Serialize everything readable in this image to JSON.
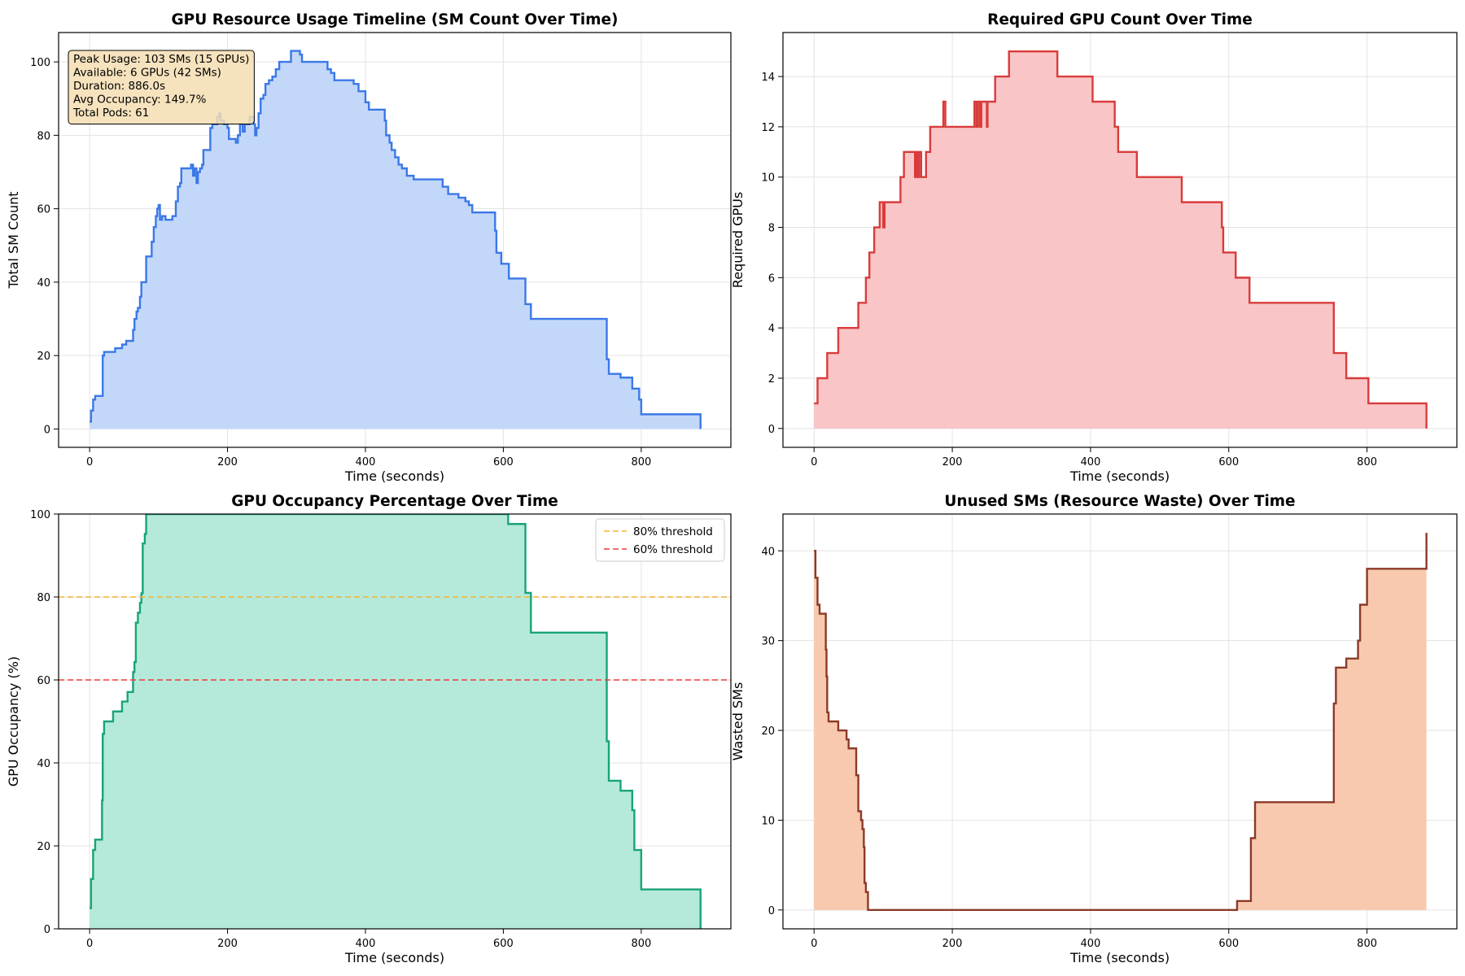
{
  "chart_data": [
    {
      "type": "area",
      "step": true,
      "title": "GPU Resource Usage Timeline (SM Count Over Time)",
      "xlabel": "Time (seconds)",
      "ylabel": "Total SM Count",
      "xlim": [
        -45,
        930
      ],
      "ylim": [
        -5,
        108
      ],
      "xticks": [
        0,
        200,
        400,
        600,
        800
      ],
      "yticks": [
        0,
        20,
        40,
        60,
        80,
        100
      ],
      "grid": true,
      "line_color": "#3b78e7",
      "fill_color": "#c3d8f9",
      "annotation": {
        "lines": [
          "Peak Usage: 103 SMs (15 GPUs)",
          "Available: 6 GPUs (42 SMs)",
          "Duration: 886.0s",
          "Avg Occupancy: 149.7%",
          "Total Pods: 61"
        ],
        "position": "top-left",
        "background": "#f5deb3"
      },
      "points": [
        [
          0,
          2
        ],
        [
          2,
          5
        ],
        [
          5,
          8
        ],
        [
          8,
          9
        ],
        [
          18,
          9
        ],
        [
          19,
          20
        ],
        [
          21,
          21
        ],
        [
          35,
          21
        ],
        [
          37,
          22
        ],
        [
          45,
          22
        ],
        [
          47,
          23
        ],
        [
          50,
          23
        ],
        [
          53,
          24
        ],
        [
          60,
          24
        ],
        [
          63,
          27
        ],
        [
          65,
          30
        ],
        [
          68,
          32
        ],
        [
          70,
          33
        ],
        [
          73,
          36
        ],
        [
          75,
          40
        ],
        [
          80,
          40
        ],
        [
          82,
          47
        ],
        [
          88,
          47
        ],
        [
          90,
          51
        ],
        [
          93,
          55
        ],
        [
          96,
          58
        ],
        [
          98,
          60
        ],
        [
          100,
          61
        ],
        [
          102,
          57
        ],
        [
          105,
          58
        ],
        [
          110,
          57
        ],
        [
          120,
          58
        ],
        [
          125,
          62
        ],
        [
          128,
          66
        ],
        [
          131,
          67
        ],
        [
          133,
          71
        ],
        [
          145,
          71
        ],
        [
          147,
          72
        ],
        [
          150,
          69
        ],
        [
          152,
          71
        ],
        [
          155,
          67
        ],
        [
          157,
          70
        ],
        [
          160,
          71
        ],
        [
          163,
          72
        ],
        [
          165,
          76
        ],
        [
          173,
          76
        ],
        [
          175,
          82
        ],
        [
          178,
          83
        ],
        [
          183,
          83
        ],
        [
          185,
          85
        ],
        [
          188,
          86
        ],
        [
          190,
          84
        ],
        [
          195,
          83
        ],
        [
          200,
          82
        ],
        [
          202,
          79
        ],
        [
          210,
          79
        ],
        [
          212,
          78
        ],
        [
          215,
          80
        ],
        [
          218,
          83
        ],
        [
          222,
          81
        ],
        [
          225,
          83
        ],
        [
          232,
          85
        ],
        [
          238,
          83
        ],
        [
          240,
          80
        ],
        [
          242,
          82
        ],
        [
          245,
          86
        ],
        [
          248,
          90
        ],
        [
          252,
          91
        ],
        [
          255,
          94
        ],
        [
          260,
          95
        ],
        [
          265,
          96
        ],
        [
          270,
          98
        ],
        [
          275,
          100
        ],
        [
          280,
          100
        ],
        [
          290,
          100
        ],
        [
          292,
          103
        ],
        [
          302,
          103
        ],
        [
          305,
          102
        ],
        [
          308,
          100
        ],
        [
          340,
          100
        ],
        [
          345,
          98
        ],
        [
          350,
          97
        ],
        [
          355,
          95
        ],
        [
          380,
          95
        ],
        [
          383,
          94
        ],
        [
          390,
          92
        ],
        [
          395,
          92
        ],
        [
          400,
          89
        ],
        [
          405,
          87
        ],
        [
          425,
          87
        ],
        [
          428,
          84
        ],
        [
          430,
          80
        ],
        [
          435,
          78
        ],
        [
          438,
          76
        ],
        [
          443,
          74
        ],
        [
          448,
          72
        ],
        [
          453,
          71
        ],
        [
          460,
          69
        ],
        [
          470,
          68
        ],
        [
          510,
          68
        ],
        [
          512,
          66
        ],
        [
          520,
          64
        ],
        [
          535,
          63
        ],
        [
          545,
          62
        ],
        [
          550,
          61
        ],
        [
          555,
          59
        ],
        [
          585,
          59
        ],
        [
          588,
          54
        ],
        [
          590,
          48
        ],
        [
          597,
          45
        ],
        [
          606,
          45
        ],
        [
          608,
          41
        ],
        [
          630,
          41
        ],
        [
          632,
          34
        ],
        [
          640,
          30
        ],
        [
          748,
          30
        ],
        [
          750,
          19
        ],
        [
          753,
          15
        ],
        [
          768,
          15
        ],
        [
          770,
          14
        ],
        [
          785,
          14
        ],
        [
          787,
          11
        ],
        [
          797,
          8
        ],
        [
          800,
          4
        ],
        [
          886,
          4
        ],
        [
          886,
          0
        ]
      ]
    },
    {
      "type": "area",
      "step": true,
      "title": "Required GPU Count Over Time",
      "xlabel": "Time (seconds)",
      "ylabel": "Required GPUs",
      "xlim": [
        -45,
        930
      ],
      "ylim": [
        -0.75,
        15.75
      ],
      "xticks": [
        0,
        200,
        400,
        600,
        800
      ],
      "yticks": [
        0,
        2,
        4,
        6,
        8,
        10,
        12,
        14
      ],
      "grid": true,
      "line_color": "#d93b3b",
      "fill_color": "#f9c5c6",
      "points": [
        [
          0,
          1
        ],
        [
          5,
          2
        ],
        [
          18,
          2
        ],
        [
          19,
          3
        ],
        [
          33,
          3
        ],
        [
          35,
          4
        ],
        [
          62,
          4
        ],
        [
          64,
          5
        ],
        [
          73,
          5
        ],
        [
          75,
          6
        ],
        [
          80,
          7
        ],
        [
          87,
          8
        ],
        [
          95,
          9
        ],
        [
          100,
          8
        ],
        [
          102,
          9
        ],
        [
          123,
          9
        ],
        [
          125,
          10
        ],
        [
          130,
          11
        ],
        [
          145,
          11
        ],
        [
          146,
          10
        ],
        [
          148,
          11
        ],
        [
          150,
          10
        ],
        [
          152,
          11
        ],
        [
          155,
          10
        ],
        [
          160,
          10
        ],
        [
          162,
          11
        ],
        [
          168,
          12
        ],
        [
          185,
          12
        ],
        [
          187,
          13
        ],
        [
          190,
          12
        ],
        [
          230,
          12
        ],
        [
          232,
          13
        ],
        [
          235,
          12
        ],
        [
          237,
          13
        ],
        [
          240,
          12
        ],
        [
          242,
          13
        ],
        [
          248,
          13
        ],
        [
          250,
          12
        ],
        [
          251,
          13
        ],
        [
          262,
          14
        ],
        [
          280,
          14
        ],
        [
          282,
          15
        ],
        [
          350,
          15
        ],
        [
          352,
          14
        ],
        [
          400,
          14
        ],
        [
          403,
          13
        ],
        [
          433,
          13
        ],
        [
          435,
          12
        ],
        [
          440,
          11
        ],
        [
          465,
          11
        ],
        [
          467,
          10
        ],
        [
          530,
          10
        ],
        [
          532,
          9
        ],
        [
          588,
          9
        ],
        [
          590,
          8
        ],
        [
          592,
          7
        ],
        [
          607,
          7
        ],
        [
          610,
          6
        ],
        [
          628,
          6
        ],
        [
          630,
          5
        ],
        [
          750,
          5
        ],
        [
          752,
          3
        ],
        [
          767,
          3
        ],
        [
          770,
          2
        ],
        [
          800,
          2
        ],
        [
          802,
          1
        ],
        [
          886,
          1
        ],
        [
          886,
          0
        ]
      ]
    },
    {
      "type": "area",
      "step": true,
      "title": "GPU Occupancy Percentage Over Time",
      "xlabel": "Time (seconds)",
      "ylabel": "GPU Occupancy (%)",
      "xlim": [
        -45,
        930
      ],
      "ylim": [
        0,
        100
      ],
      "xticks": [
        0,
        200,
        400,
        600,
        800
      ],
      "yticks": [
        0,
        20,
        40,
        60,
        80,
        100
      ],
      "grid": true,
      "line_color": "#19a37a",
      "fill_color": "#b5eada",
      "thresholds": [
        {
          "name": "80% threshold",
          "value": 80,
          "color": "#f5b331"
        },
        {
          "name": "60% threshold",
          "value": 60,
          "color": "#ee3b3b"
        }
      ],
      "legend": "top-right",
      "points": [
        [
          0,
          5
        ],
        [
          2,
          12
        ],
        [
          5,
          19
        ],
        [
          8,
          21.5
        ],
        [
          17,
          21.5
        ],
        [
          18,
          31
        ],
        [
          19,
          47
        ],
        [
          21,
          50
        ],
        [
          32,
          50
        ],
        [
          34,
          52.4
        ],
        [
          45,
          52.4
        ],
        [
          47,
          54.8
        ],
        [
          53,
          54.8
        ],
        [
          55,
          57.1
        ],
        [
          62,
          57.1
        ],
        [
          63,
          61.9
        ],
        [
          65,
          64.3
        ],
        [
          67,
          73.8
        ],
        [
          70,
          76.2
        ],
        [
          73,
          78.6
        ],
        [
          75,
          80.9
        ],
        [
          77,
          92.9
        ],
        [
          80,
          95.2
        ],
        [
          82,
          100
        ],
        [
          605,
          100
        ],
        [
          607,
          97.6
        ],
        [
          630,
          97.6
        ],
        [
          632,
          81
        ],
        [
          640,
          71.4
        ],
        [
          748,
          71.4
        ],
        [
          750,
          45.2
        ],
        [
          753,
          35.7
        ],
        [
          768,
          35.7
        ],
        [
          770,
          33.3
        ],
        [
          785,
          33.3
        ],
        [
          787,
          28.6
        ],
        [
          790,
          19
        ],
        [
          800,
          9.5
        ],
        [
          886,
          9.5
        ],
        [
          886,
          0
        ]
      ]
    },
    {
      "type": "area",
      "step": true,
      "title": "Unused SMs (Resource Waste) Over Time",
      "xlabel": "Time (seconds)",
      "ylabel": "Wasted SMs",
      "xlim": [
        -45,
        930
      ],
      "ylim": [
        -2.1,
        44.1
      ],
      "xticks": [
        0,
        200,
        400,
        600,
        800
      ],
      "yticks": [
        0,
        10,
        20,
        30,
        40
      ],
      "grid": true,
      "line_color": "#8b3a28",
      "fill_color": "#f8c9ae",
      "points": [
        [
          0,
          40
        ],
        [
          2,
          37
        ],
        [
          5,
          34
        ],
        [
          8,
          33
        ],
        [
          16,
          33
        ],
        [
          17,
          29
        ],
        [
          18,
          26
        ],
        [
          19,
          22
        ],
        [
          21,
          21
        ],
        [
          33,
          21
        ],
        [
          35,
          20
        ],
        [
          45,
          20
        ],
        [
          47,
          19
        ],
        [
          50,
          18
        ],
        [
          60,
          18
        ],
        [
          61,
          15
        ],
        [
          64,
          11
        ],
        [
          68,
          10
        ],
        [
          70,
          9
        ],
        [
          72,
          7
        ],
        [
          73,
          3
        ],
        [
          75,
          2
        ],
        [
          78,
          0
        ],
        [
          610,
          0
        ],
        [
          612,
          1
        ],
        [
          630,
          1
        ],
        [
          632,
          8
        ],
        [
          638,
          12
        ],
        [
          750,
          12
        ],
        [
          752,
          23
        ],
        [
          755,
          27
        ],
        [
          768,
          27
        ],
        [
          770,
          28
        ],
        [
          785,
          28
        ],
        [
          787,
          30
        ],
        [
          790,
          34
        ],
        [
          800,
          38
        ],
        [
          884,
          38
        ],
        [
          886,
          42
        ]
      ]
    }
  ]
}
